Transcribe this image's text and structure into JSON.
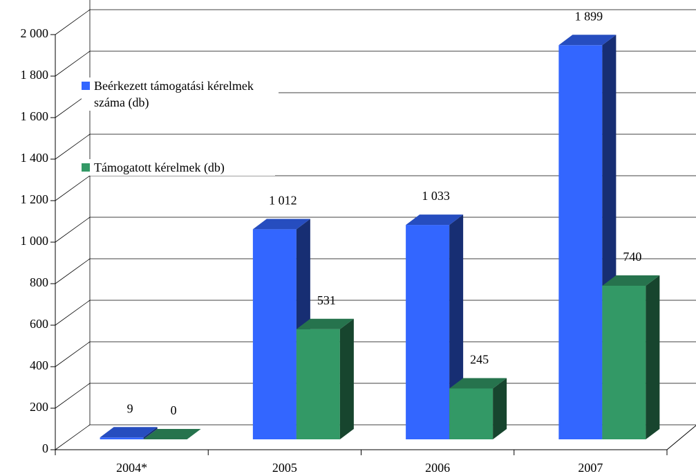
{
  "chart_data": {
    "type": "bar3d",
    "categories": [
      "2004*",
      "2005",
      "2006",
      "2007"
    ],
    "series": [
      {
        "name": "Beérkezett támogatási kérelmek száma (db)",
        "color": "#3366ff",
        "values": [
          9,
          1012,
          1033,
          1899
        ],
        "value_labels": [
          "9",
          "1 012",
          "1 033",
          "1 899"
        ]
      },
      {
        "name": "Támogatott kérelmek (db)",
        "color": "#339966",
        "values": [
          0,
          531,
          245,
          740
        ],
        "value_labels": [
          "0",
          "531",
          "245",
          "740"
        ]
      }
    ],
    "ylim": [
      0,
      2000
    ],
    "yticks": [
      0,
      200,
      400,
      600,
      800,
      {
        "value": 1000,
        "label": "1 000"
      },
      {
        "value": 1200,
        "label": "1 200"
      },
      {
        "value": 1400,
        "label": "1 400"
      },
      {
        "value": 1600,
        "label": "1 600"
      },
      {
        "value": 1800,
        "label": "1 800"
      },
      {
        "value": 2000,
        "label": "2 000"
      }
    ],
    "grid": true,
    "legend": "upper left"
  }
}
